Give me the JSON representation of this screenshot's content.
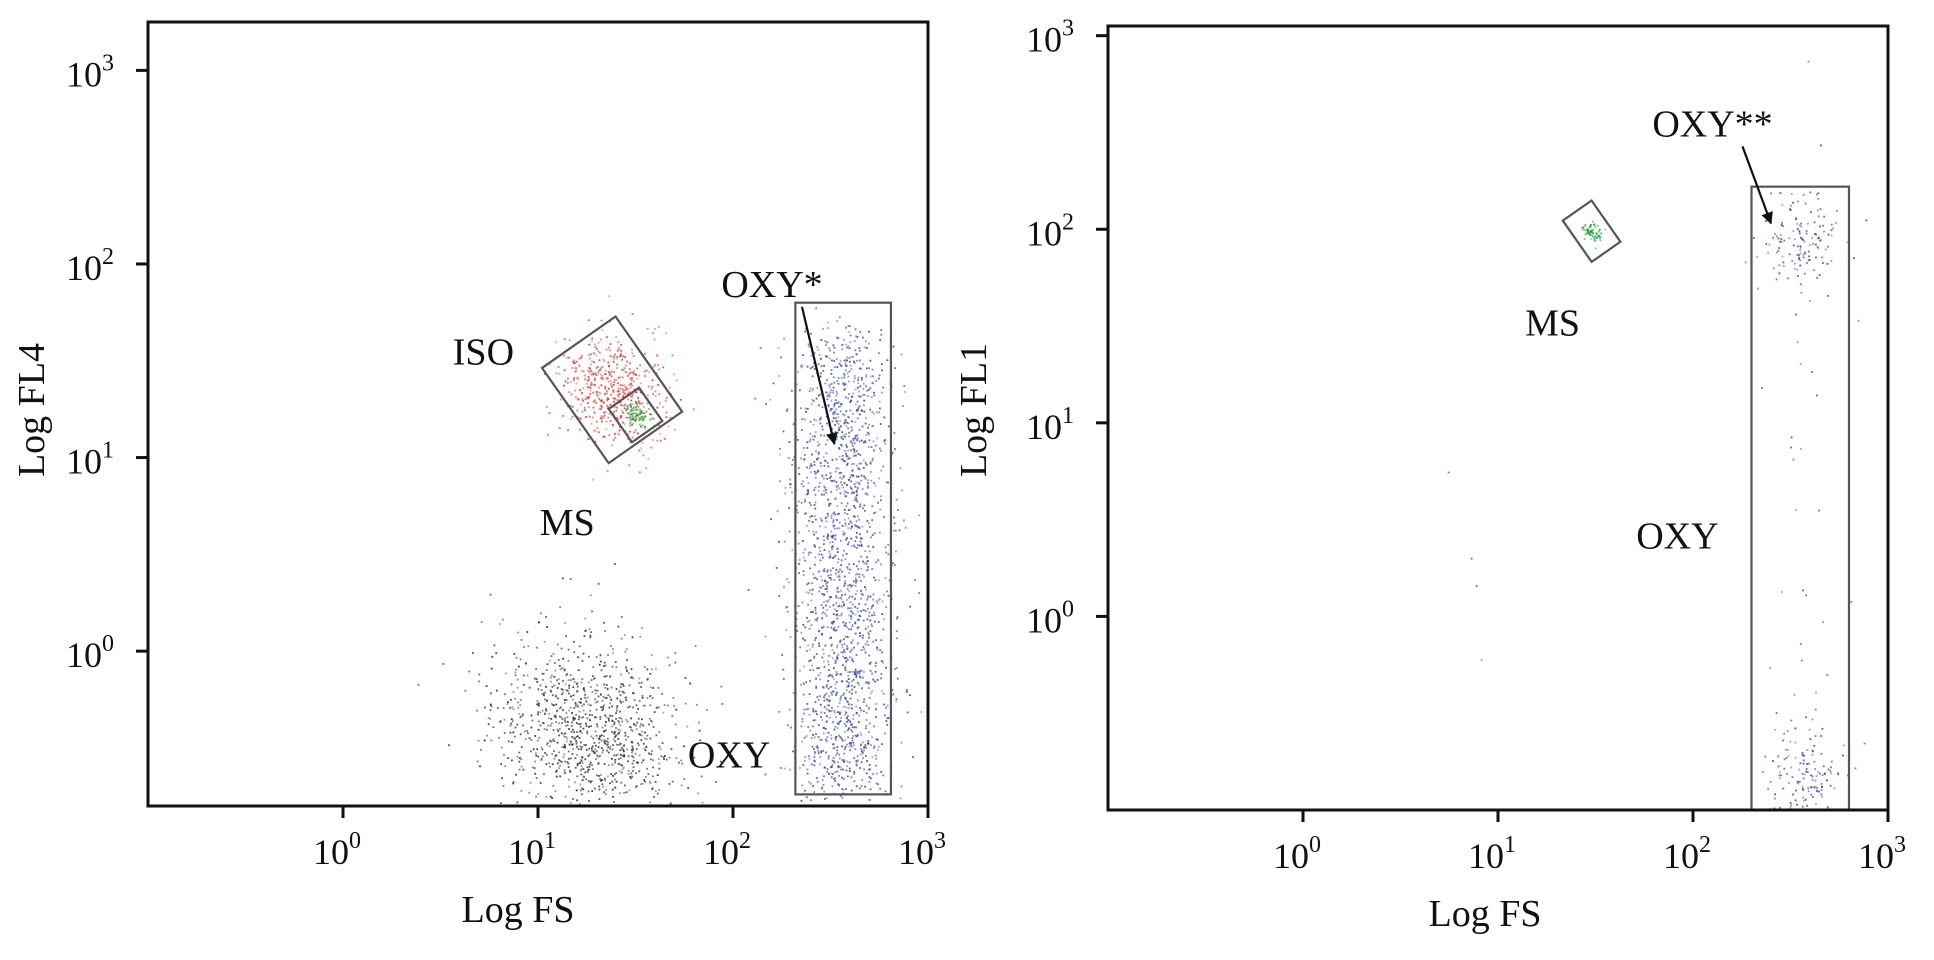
{
  "figure": "flow-cytometry-dot-plots",
  "colors": {
    "axis": "#111111",
    "gate": "#555555",
    "iso": "#e23b3b",
    "ms": "#22a033",
    "oxy": "#3d4aa6",
    "debris": "#333333"
  },
  "chart_data": [
    {
      "type": "scatter",
      "scale": "log-log",
      "xlabel": "Log FS",
      "ylabel": "Log FL4",
      "xlim_exp": [
        -1,
        3
      ],
      "ylim_exp": [
        -0.8,
        3.25
      ],
      "xticks": [
        {
          "base": "10",
          "exp": "0",
          "value": 1
        },
        {
          "base": "10",
          "exp": "1",
          "value": 10
        },
        {
          "base": "10",
          "exp": "2",
          "value": 100
        },
        {
          "base": "10",
          "exp": "3",
          "value": 1000
        }
      ],
      "yticks": [
        {
          "base": "10",
          "exp": "0",
          "value": 1
        },
        {
          "base": "10",
          "exp": "1",
          "value": 10
        },
        {
          "base": "10",
          "exp": "2",
          "value": 100
        },
        {
          "base": "10",
          "exp": "3",
          "value": 1000
        }
      ],
      "populations": [
        {
          "name": "ISO",
          "label": "ISO",
          "color": "iso",
          "n": 520,
          "center_log": [
            1.38,
            1.35
          ],
          "spread_log": [
            0.13,
            0.15
          ],
          "rot_deg": 35
        },
        {
          "name": "MS",
          "label": "MS",
          "color": "ms",
          "n": 80,
          "center_log": [
            1.5,
            1.22
          ],
          "spread_log": [
            0.03,
            0.04
          ],
          "rot_deg": 35
        },
        {
          "name": "OXY",
          "label": "OXY",
          "color": "oxy",
          "n": 1900,
          "center_log": [
            2.55,
            0.8
          ],
          "spread_log": [
            0.13,
            0.85
          ],
          "rot_deg": 0,
          "range_y": [
            -0.7,
            1.6
          ]
        },
        {
          "name": "debris",
          "label": "",
          "color": "debris",
          "n": 1100,
          "center_log": [
            1.25,
            -0.4
          ],
          "spread_log": [
            0.22,
            0.28
          ],
          "rot_deg": 35
        }
      ],
      "gates": [
        {
          "name": "ISO",
          "shape": "rot-rect",
          "center_log": [
            1.38,
            1.35
          ],
          "size_log": [
            0.46,
            0.6
          ],
          "rot_deg": 35
        },
        {
          "name": "MS",
          "shape": "rot-rect",
          "center_log": [
            1.5,
            1.22
          ],
          "size_log": [
            0.19,
            0.21
          ],
          "rot_deg": 35
        },
        {
          "name": "OXY",
          "shape": "rect",
          "xrange_log": [
            2.32,
            2.81
          ],
          "yrange_log": [
            -0.74,
            1.8
          ]
        }
      ],
      "annotations": [
        {
          "text": "OXY*",
          "role": "arrow-label",
          "at_log": [
            2.2,
            1.83
          ],
          "arrow_to_log": [
            2.52,
            1.07
          ]
        },
        {
          "text": "ISO",
          "role": "gate-label",
          "at_log": [
            0.72,
            1.48
          ]
        },
        {
          "text": "MS",
          "role": "gate-label",
          "at_log": [
            1.15,
            0.6
          ]
        },
        {
          "text": "OXY",
          "role": "gate-label",
          "at_log": [
            1.98,
            -0.6
          ]
        }
      ]
    },
    {
      "type": "scatter",
      "scale": "log-log",
      "xlabel": "Log FS",
      "ylabel": "Log FL1",
      "xlim_exp": [
        -1,
        3
      ],
      "ylim_exp": [
        -1,
        3.05
      ],
      "xticks": [
        {
          "base": "10",
          "exp": "0",
          "value": 1
        },
        {
          "base": "10",
          "exp": "1",
          "value": 10
        },
        {
          "base": "10",
          "exp": "2",
          "value": 100
        },
        {
          "base": "10",
          "exp": "3",
          "value": 1000
        }
      ],
      "yticks": [
        {
          "base": "10",
          "exp": "0",
          "value": 1
        },
        {
          "base": "10",
          "exp": "1",
          "value": 10
        },
        {
          "base": "10",
          "exp": "2",
          "value": 100
        },
        {
          "base": "10",
          "exp": "3",
          "value": 1000
        }
      ],
      "populations": [
        {
          "name": "MS",
          "label": "MS",
          "color": "ms",
          "n": 60,
          "center_log": [
            1.48,
            1.99
          ],
          "spread_log": [
            0.025,
            0.03
          ],
          "rot_deg": 35
        },
        {
          "name": "OXY-high",
          "label": "OXY",
          "color": "oxy",
          "n": 140,
          "center_log": [
            2.55,
            1.95
          ],
          "spread_log": [
            0.1,
            0.12
          ],
          "rot_deg": 0
        },
        {
          "name": "OXY-low",
          "label": "OXY",
          "color": "oxy",
          "n": 150,
          "center_log": [
            2.58,
            -0.82
          ],
          "spread_log": [
            0.1,
            0.14
          ],
          "rot_deg": 0
        },
        {
          "name": "OXY-sparse",
          "label": "OXY",
          "color": "oxy",
          "n": 30,
          "center_log": [
            2.55,
            0.8
          ],
          "spread_log": [
            0.1,
            0.9
          ],
          "rot_deg": 0
        },
        {
          "name": "stray",
          "label": "",
          "color": "debris",
          "n": 4,
          "center_log": [
            0.85,
            0.0
          ],
          "spread_log": [
            0.08,
            0.3
          ],
          "rot_deg": 0
        }
      ],
      "gates": [
        {
          "name": "MS",
          "shape": "rot-rect",
          "center_log": [
            1.48,
            1.99
          ],
          "size_log": [
            0.18,
            0.26
          ],
          "rot_deg": 35
        },
        {
          "name": "OXY",
          "shape": "rect",
          "xrange_log": [
            2.3,
            2.8
          ],
          "yrange_log": [
            -1,
            2.22
          ]
        }
      ],
      "annotations": [
        {
          "text": "OXY**",
          "role": "arrow-label",
          "at_log": [
            2.1,
            2.48
          ],
          "arrow_to_log": [
            2.4,
            2.03
          ]
        },
        {
          "text": "MS",
          "role": "gate-label",
          "at_log": [
            1.28,
            1.45
          ]
        },
        {
          "text": "OXY",
          "role": "gate-label",
          "at_log": [
            1.92,
            0.35
          ]
        }
      ]
    }
  ]
}
